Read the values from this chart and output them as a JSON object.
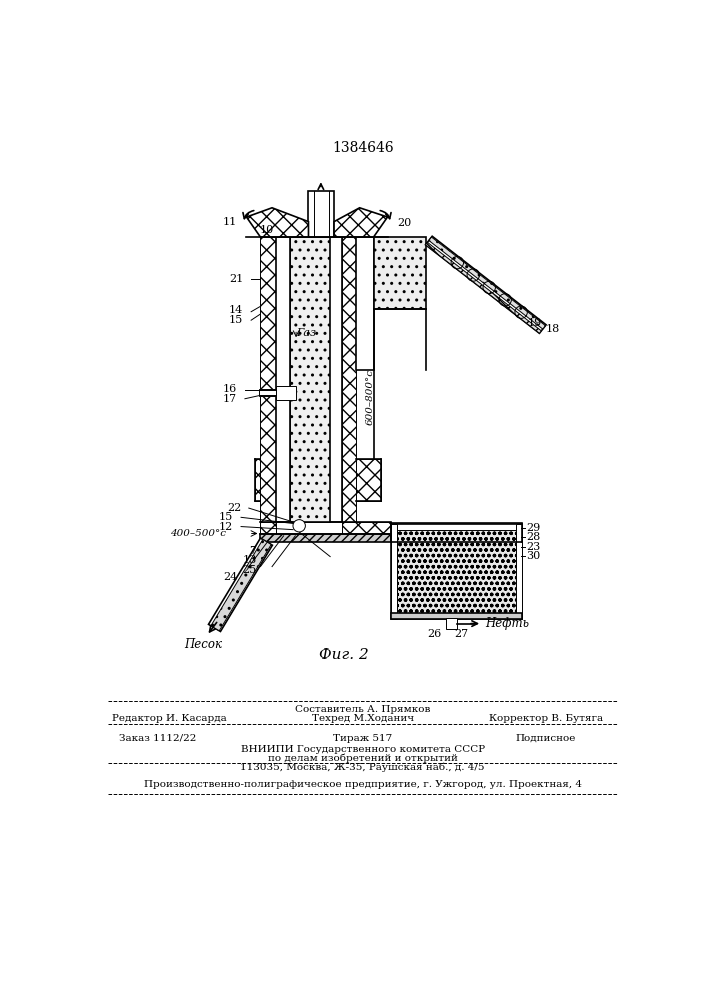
{
  "patent_number": "1384646",
  "figure_label": "Фиг. 2",
  "background_color": "#ffffff",
  "line_color": "#000000",
  "labels": {
    "gas": "Газ",
    "temp_high": "600–800°с",
    "temp_low": "400–500°с",
    "sand": "Песок",
    "oil": "Нефть"
  },
  "footer": {
    "sestavitel": "Составитель А. Прямков",
    "redaktor": "Редактор И. Касарда",
    "tehred": "Техред М.Ходанич",
    "korrektor": "Корректор В. Бутяга",
    "zakaz": "Заказ 1112/22",
    "tirazh": "Тираж 517",
    "podpisnoe": "Подписное",
    "vniipи": "ВНИИПИ Государственного комитета СССР",
    "podel": "по делам изобретений и открытий",
    "address": "113035, Москва, Ж-35, Раушская наб., д. 4/5",
    "factory": "Производственно-полиграфическое предприятие, г. Ужгород, ул. Проектная, 4"
  }
}
